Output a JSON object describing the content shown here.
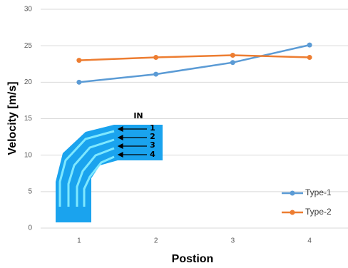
{
  "chart_data": {
    "type": "line",
    "x_label": "Postion",
    "y_label": "Velocity [m/s]",
    "categories": [
      "1",
      "2",
      "3",
      "4"
    ],
    "series": [
      {
        "name": "Type-1",
        "color": "#5b9bd5",
        "values": [
          20.0,
          21.1,
          22.7,
          25.1
        ]
      },
      {
        "name": "Type-2",
        "color": "#ed7d31",
        "values": [
          23.0,
          23.4,
          23.7,
          23.4
        ]
      }
    ],
    "ylim": [
      0,
      30
    ],
    "yticks": [
      0,
      5,
      10,
      15,
      20,
      25,
      30
    ],
    "grid": true,
    "legend": "lower-right"
  },
  "inset": {
    "inlet_label": "IN",
    "position_labels": [
      "1",
      "2",
      "3",
      "4"
    ]
  }
}
